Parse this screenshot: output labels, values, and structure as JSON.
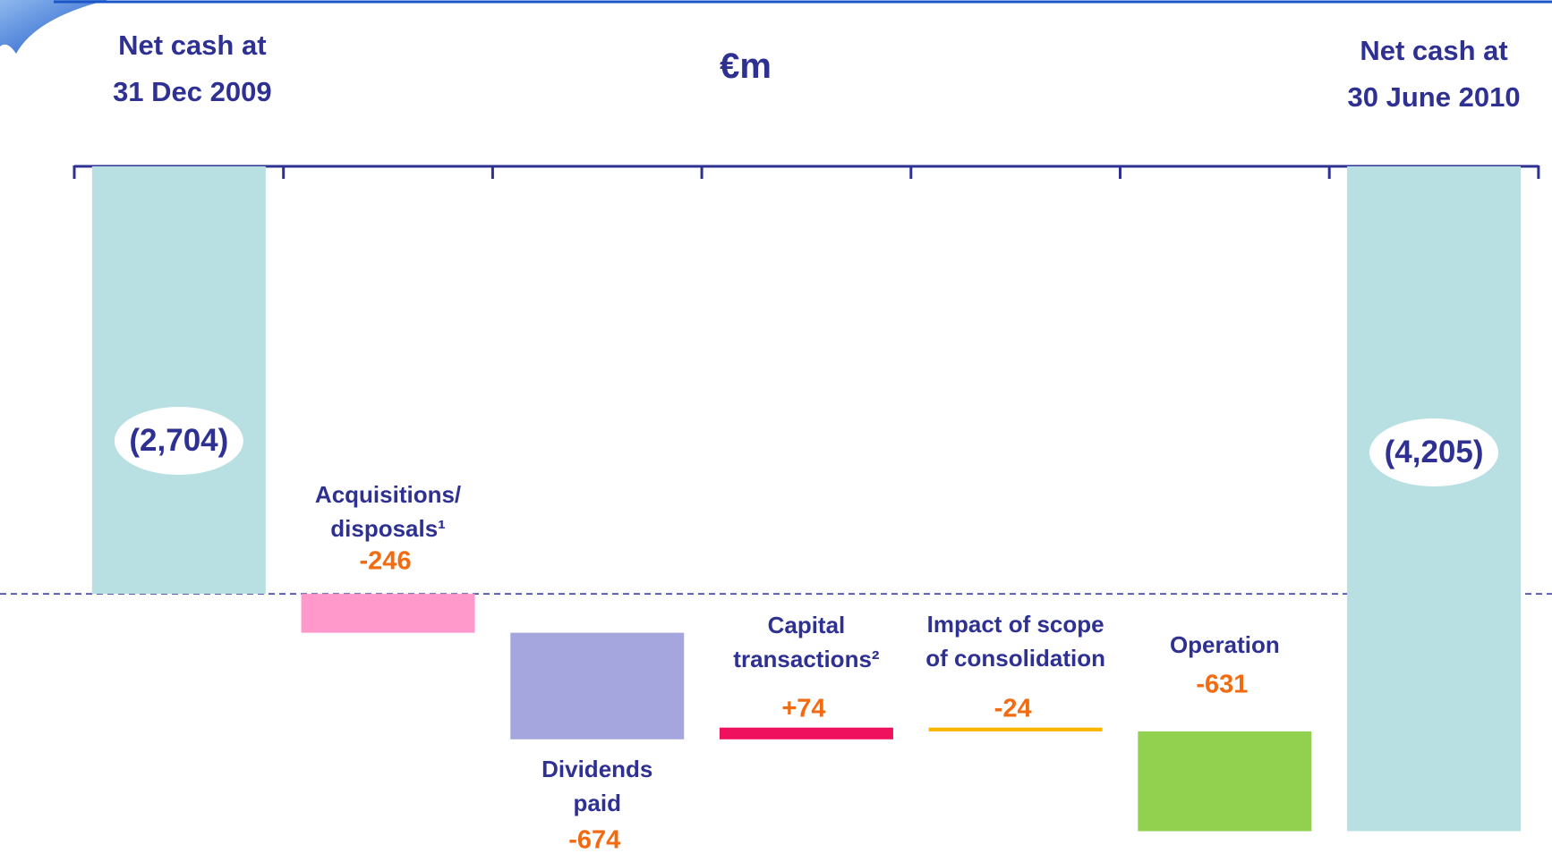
{
  "chart_data": {
    "type": "waterfall",
    "title": "€m",
    "categories": [
      "Net cash at\n31 Dec 2009",
      "Acquisitions/\ndisposals¹",
      "Dividends\npaid",
      "Capital\ntransactions²",
      "Impact of scope\nof consolidation",
      "Operation",
      "Net cash at\n30 June 2010"
    ],
    "values": [
      -2704,
      -246,
      -674,
      74,
      -24,
      -631,
      -4205
    ],
    "value_labels": [
      "(2,704)",
      "-246",
      "-674",
      "+74",
      "-24",
      "-631",
      "(4,205)"
    ],
    "colors": [
      "#b8e0e2",
      "#ff99cc",
      "#a6a6de",
      "#f0115e",
      "#f7b500",
      "#92d050",
      "#b8e0e2"
    ],
    "ylim": [
      -4400,
      0
    ]
  }
}
